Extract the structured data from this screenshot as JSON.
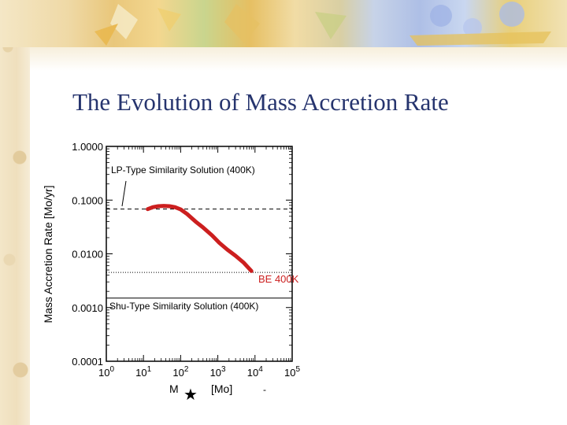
{
  "slide": {
    "title": "The Evolution of Mass Accretion Rate"
  },
  "chart_data": {
    "type": "line",
    "title": "",
    "xscale": "log",
    "yscale": "log",
    "xlim": [
      1,
      100000
    ],
    "ylim": [
      0.0001,
      1.0
    ],
    "xticks": [
      {
        "value": 1,
        "base": "10",
        "exp": "0"
      },
      {
        "value": 10,
        "base": "10",
        "exp": "1"
      },
      {
        "value": 100,
        "base": "10",
        "exp": "2"
      },
      {
        "value": 1000,
        "base": "10",
        "exp": "3"
      },
      {
        "value": 10000,
        "base": "10",
        "exp": "4"
      },
      {
        "value": 100000,
        "base": "10",
        "exp": "5"
      }
    ],
    "yticks": [
      {
        "value": 1.0,
        "label": "1.0000"
      },
      {
        "value": 0.1,
        "label": "0.1000"
      },
      {
        "value": 0.01,
        "label": "0.0100"
      },
      {
        "value": 0.001,
        "label": "0.0010"
      },
      {
        "value": 0.0001,
        "label": "0.0001"
      }
    ],
    "ylabel": "Mass Accretion Rate  [Mo/yr]",
    "xlabel": {
      "symbol": "M",
      "star": "★",
      "unit": "[Mo]"
    },
    "series": [
      {
        "name": "BE 400K",
        "color": "#cc1f1f",
        "x": [
          13,
          18,
          25,
          35,
          50,
          70,
          100,
          150,
          250,
          400,
          700,
          1100,
          1800,
          3000,
          5000,
          8000
        ],
        "y": [
          0.068,
          0.074,
          0.077,
          0.078,
          0.077,
          0.074,
          0.067,
          0.055,
          0.04,
          0.031,
          0.022,
          0.016,
          0.012,
          0.0092,
          0.0068,
          0.0048
        ]
      }
    ],
    "reference_lines": [
      {
        "name": "LP-Type Similarity Solution (400K)",
        "y": 0.068,
        "style": "dashed"
      },
      {
        "name": "BE 400K level",
        "y": 0.0045,
        "style": "dotted"
      },
      {
        "name": "Shu-Type Similarity Solution (400K)",
        "y": 0.0015,
        "style": "solid"
      }
    ],
    "annotations": {
      "lp_label": "LP-Type Similarity Solution (400K)",
      "shu_label": "Shu-Type Similarity Solution (400K)",
      "be_label": "BE 400K",
      "trailing_mark": "-"
    }
  }
}
